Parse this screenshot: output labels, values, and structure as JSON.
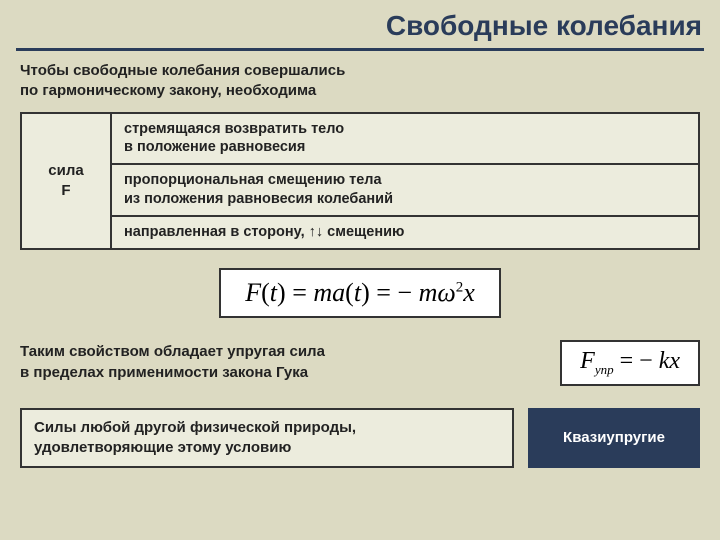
{
  "title": "Свободные колебания",
  "intro_l1": "Чтобы свободные колебания совершались",
  "intro_l2": "по гармоническому закону, необходима",
  "table": {
    "left_l1": "сила",
    "left_l2": "F",
    "rows": [
      "стремящаяся возвратить тело\nв положение равновесия",
      "пропорциональная смещению тела\nиз положения равновесия колебаний",
      "направленная в сторону, ↑↓ смещению"
    ]
  },
  "formula_main": "F(t) = ma(t) = − mω²x",
  "mid": {
    "text_l1": "Таким свойством обладает упругая сила",
    "text_l2": "в пределах применимости закона Гука",
    "formula_html": "F<sub>упр</sub> = −kx"
  },
  "bottom": {
    "left_l1": "Силы любой другой физической природы,",
    "left_l2": "удовлетворяющие этому условию",
    "right": "Квазиупругие"
  },
  "colors": {
    "bg": "#dcdac2",
    "accent": "#2a3c5a",
    "box_bg": "#ececdd",
    "border": "#333333",
    "text": "#222222",
    "white": "#ffffff"
  }
}
